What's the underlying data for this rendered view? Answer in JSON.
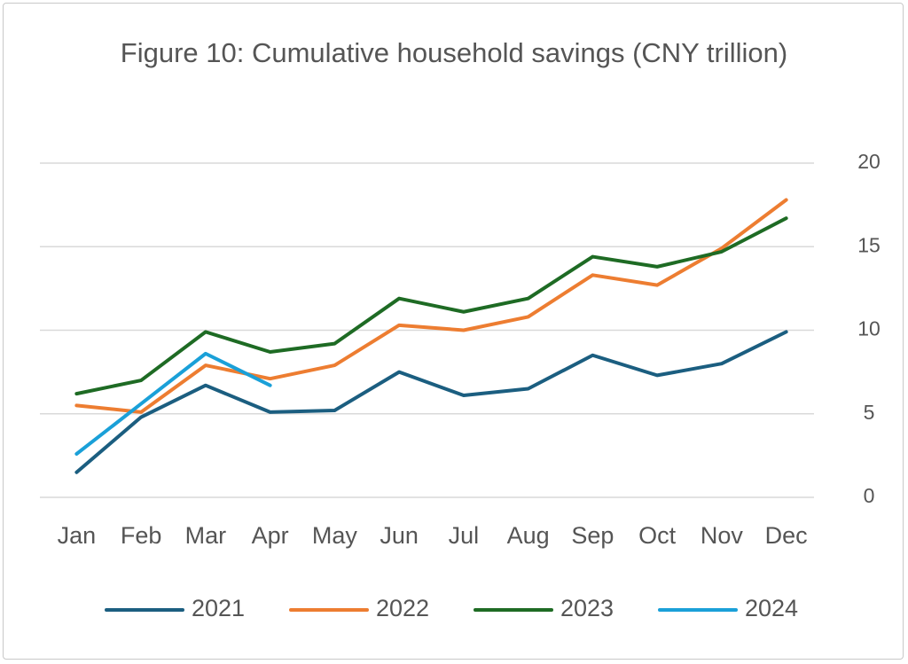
{
  "chart_data": {
    "type": "line",
    "title": "Figure 10: Cumulative household savings (CNY trillion)",
    "categories": [
      "Jan",
      "Feb",
      "Mar",
      "Apr",
      "May",
      "Jun",
      "Jul",
      "Aug",
      "Sep",
      "Oct",
      "Nov",
      "Dec"
    ],
    "series": [
      {
        "name": "2021",
        "color": "#1b5e80",
        "values": [
          1.5,
          4.8,
          6.7,
          5.1,
          5.2,
          7.5,
          6.1,
          6.5,
          8.5,
          7.3,
          8.0,
          9.9
        ]
      },
      {
        "name": "2022",
        "color": "#ed7d31",
        "values": [
          5.5,
          5.1,
          7.9,
          7.1,
          7.9,
          10.3,
          10.0,
          10.8,
          13.3,
          12.7,
          14.9,
          17.8
        ]
      },
      {
        "name": "2023",
        "color": "#1e6b24",
        "values": [
          6.2,
          7.0,
          9.9,
          8.7,
          9.2,
          11.9,
          11.1,
          11.9,
          14.4,
          13.8,
          14.7,
          16.7
        ]
      },
      {
        "name": "2024",
        "color": "#1aa0d8",
        "values": [
          2.6,
          5.6,
          8.6,
          6.7,
          null,
          null,
          null,
          null,
          null,
          null,
          null,
          null
        ]
      }
    ],
    "ylim": [
      0,
      20
    ],
    "yticks": [
      0,
      5,
      10,
      15,
      20
    ],
    "grid": true,
    "y_axis_side": "right",
    "legend": "bottom"
  }
}
